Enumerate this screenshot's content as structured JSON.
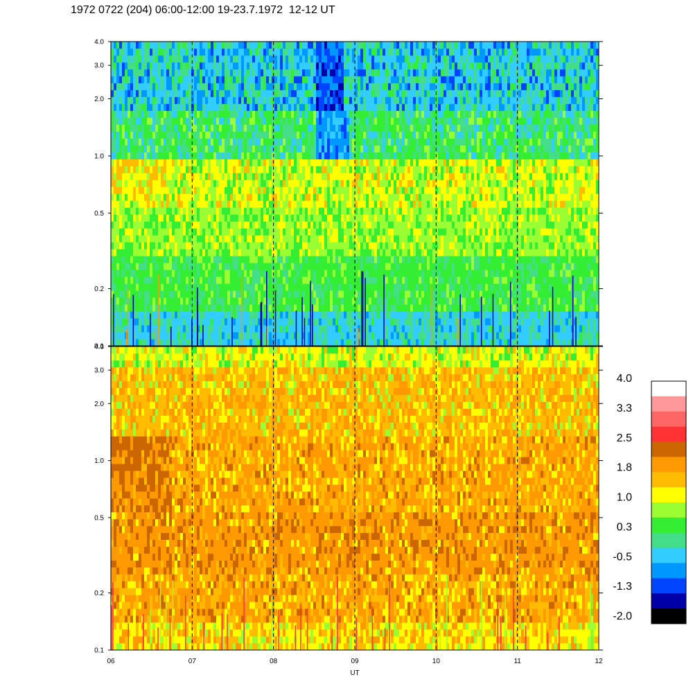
{
  "title": "1972 0722 (204) 06:00-12:00 19-23.7.1972  12-12 UT",
  "chart_data": [
    {
      "type": "heatmap",
      "panel": "top",
      "x_range": [
        "06",
        "12"
      ],
      "x_ticks": [
        "06",
        "07",
        "08",
        "09",
        "10",
        "11",
        "12"
      ],
      "y_scale": "log",
      "y_range": [
        0.1,
        4.0
      ],
      "y_ticks": [
        "0.1",
        "0.2",
        "0.5",
        "1.0",
        "2.0",
        "3.0",
        "4.0"
      ],
      "hour_markers": [
        7,
        8,
        9,
        10,
        11
      ],
      "dominant_levels": "low frequencies green to cyan (about 0.3 to -0.5), mid band yellow-green (about 0.3 to 1.0), upper band cyan to blue (about -0.5 to -1.3)"
    },
    {
      "type": "heatmap",
      "panel": "bottom",
      "x_range": [
        "06",
        "12"
      ],
      "x_ticks": [
        "06",
        "07",
        "08",
        "09",
        "10",
        "11",
        "12"
      ],
      "xlabel": "UT",
      "y_scale": "log",
      "y_range": [
        0.1,
        4.0
      ],
      "y_ticks": [
        "0.1",
        "0.2",
        "0.5",
        "1.0",
        "2.0",
        "3.0",
        "4.0"
      ],
      "hour_markers": [
        7,
        8,
        9,
        10,
        11
      ],
      "dominant_levels": "mostly orange to yellow (about 1.0 to 1.8), darker orange (about 2.2) around 0.5-1.0 near 06:30, yellow-green near 4.0 and 0.1"
    }
  ],
  "colorbar": {
    "labels": [
      "4.0",
      "3.3",
      "2.5",
      "1.8",
      "1.0",
      "0.3",
      "-0.5",
      "-1.3",
      "-2.0"
    ],
    "colors": [
      "#ffffff",
      "#ff9999",
      "#ff6666",
      "#ff3333",
      "#cc6600",
      "#ff9900",
      "#ffbb00",
      "#ffff00",
      "#99ff33",
      "#33ee33",
      "#44dd88",
      "#33ccff",
      "#0099ff",
      "#0044ff",
      "#0000aa",
      "#000000"
    ]
  }
}
